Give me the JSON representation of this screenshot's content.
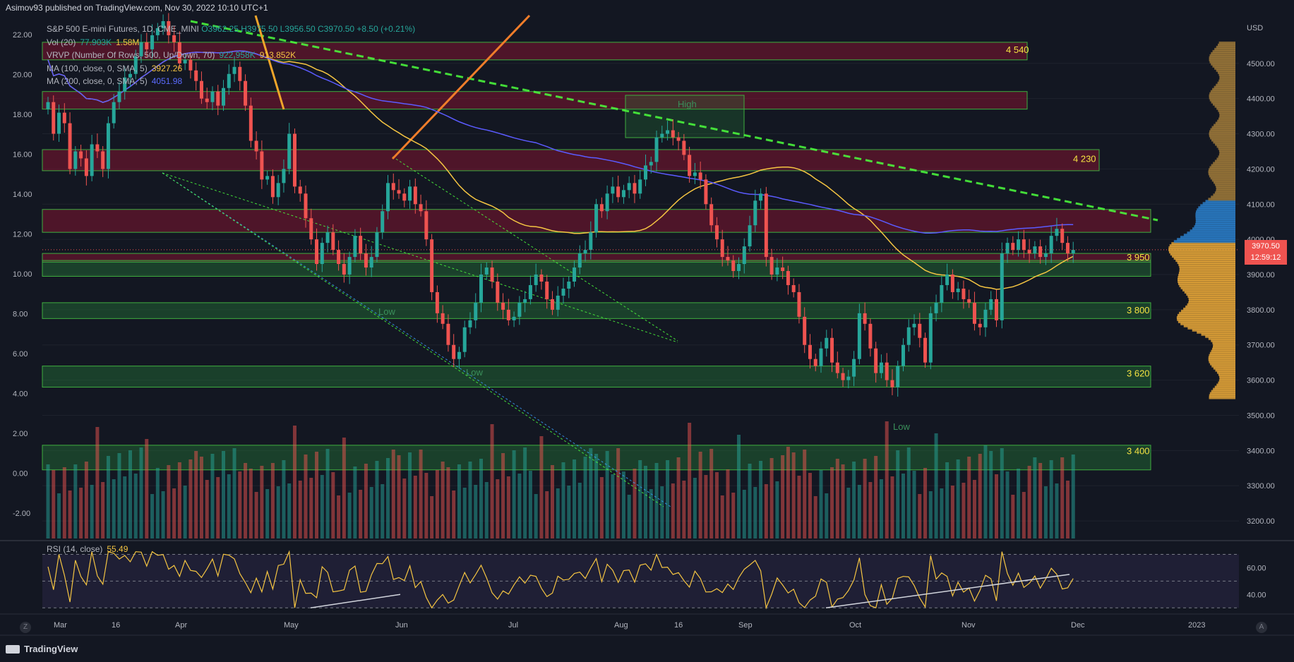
{
  "header": {
    "text": "Asimov93 published on TradingView.com, Nov 30, 2022 10:10 UTC+1"
  },
  "legend": {
    "symbol": "S&P 500 E-mini Futures, 1D, CME_MINI",
    "ohlc": "O3962.25 H3975.50 L3956.50 C3970.50 +8.50 (+0.21%)",
    "vol_label": "Vol (20)",
    "vol_v1": "77.903K",
    "vol_v2": "1.58M",
    "vrvp_label": "VRVP (Number Of Rows, 500, Up/Down, 70)",
    "vrvp_v1": "922.958K",
    "vrvp_v2": "913.852K",
    "ma100_label": "MA (100, close, 0, SMA, 5)",
    "ma100_value": "3927.26",
    "ma200_label": "MA (200, close, 0, SMA, 5)",
    "ma200_value": "4051.98"
  },
  "rsi": {
    "label": "RSI (14, close)",
    "value": "55.49"
  },
  "price_tag": {
    "price": "3970.50",
    "countdown": "12:59:12"
  },
  "currency": "USD",
  "brand": "TradingView",
  "corner_left": "Z",
  "corner_right": "A",
  "colors": {
    "bg": "#131722",
    "up": "#26a69a",
    "down": "#ef5350",
    "zone_green": "#4caf50",
    "zone_red": "#b71c3c",
    "ma100": "#f5c542",
    "ma200": "#5b5bff",
    "trend": "#4cff3c",
    "level_text": "#f5e342"
  },
  "chart_data": [
    {
      "type": "candlestick",
      "title": "S&P 500 E-mini Futures, 1D, CME_MINI",
      "x_ticks": [
        "Mar",
        "16",
        "Apr",
        "May",
        "Jun",
        "Jul",
        "Aug",
        "16",
        "Sep",
        "Oct",
        "Nov",
        "Dec",
        "2023"
      ],
      "y_ticks_price": [
        3200,
        3300,
        3400,
        3500,
        3600,
        3700,
        3800,
        3900,
        4000,
        4100,
        4200,
        4300,
        4400,
        4500
      ],
      "y_ticks_volume": [
        "22.00",
        "20.00",
        "18.00",
        "16.00",
        "14.00",
        "12.00",
        "10.00",
        "8.00",
        "6.00",
        "4.00",
        "2.00",
        "0.00",
        "-2.00"
      ],
      "ylim": [
        3150,
        4640
      ],
      "levels": [
        {
          "label": "4 540",
          "price": 4540
        },
        {
          "label": "4 230",
          "price": 4230
        },
        {
          "label": "3 950",
          "price": 3950
        },
        {
          "label": "3 800",
          "price": 3800
        },
        {
          "label": "3 620",
          "price": 3620
        },
        {
          "label": "3 400",
          "price": 3400
        }
      ],
      "annotations": [
        "High",
        "Low",
        "Low",
        "Low"
      ],
      "closes": [
        4390,
        4300,
        4360,
        4330,
        4200,
        4250,
        4230,
        4180,
        4270,
        4250,
        4200,
        4330,
        4390,
        4420,
        4460,
        4470,
        4520,
        4560,
        4540,
        4580,
        4600,
        4620,
        4580,
        4560,
        4500,
        4510,
        4480,
        4450,
        4400,
        4390,
        4420,
        4380,
        4430,
        4470,
        4490,
        4450,
        4380,
        4280,
        4250,
        4170,
        4180,
        4120,
        4160,
        4200,
        4300,
        4150,
        4130,
        4060,
        4000,
        3930,
        3990,
        4020,
        3970,
        3930,
        3900,
        3950,
        4010,
        3960,
        3920,
        3950,
        4020,
        4080,
        4160,
        4140,
        4130,
        4110,
        4150,
        4100,
        4080,
        4000,
        3850,
        3790,
        3760,
        3700,
        3660,
        3680,
        3750,
        3770,
        3820,
        3900,
        3920,
        3880,
        3820,
        3800,
        3770,
        3780,
        3820,
        3830,
        3870,
        3900,
        3880,
        3830,
        3800,
        3840,
        3860,
        3880,
        3920,
        3960,
        3970,
        4020,
        4100,
        4080,
        4130,
        4150,
        4120,
        4140,
        4160,
        4130,
        4170,
        4210,
        4220,
        4290,
        4300,
        4310,
        4290,
        4280,
        4240,
        4180,
        4190,
        4170,
        4100,
        4040,
        4000,
        3950,
        3940,
        3910,
        3930,
        3980,
        4040,
        4110,
        4130,
        3950,
        3900,
        3920,
        3910,
        3870,
        3850,
        3780,
        3700,
        3660,
        3640,
        3690,
        3720,
        3650,
        3620,
        3600,
        3610,
        3660,
        3790,
        3760,
        3690,
        3620,
        3650,
        3600,
        3580,
        3640,
        3700,
        3750,
        3760,
        3720,
        3650,
        3790,
        3820,
        3870,
        3900,
        3850,
        3860,
        3830,
        3820,
        3760,
        3750,
        3800,
        3830,
        3770,
        3960,
        3990,
        3970,
        4000,
        3970,
        3960,
        3980,
        3950,
        3960,
        4010,
        4030,
        3990,
        3960,
        3970
      ]
    },
    {
      "type": "line",
      "title": "RSI (14, close)",
      "y_ticks": [
        40.0,
        60.0
      ],
      "ylim": [
        28,
        75
      ],
      "last": 55.49
    }
  ]
}
